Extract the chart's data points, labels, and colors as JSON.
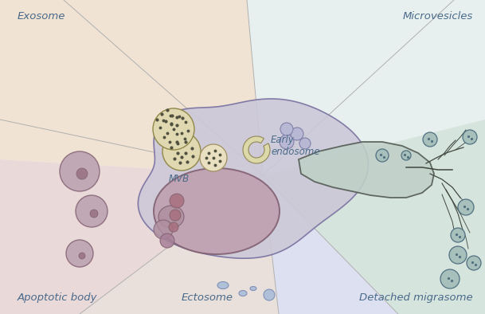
{
  "bg_color": "#ffffff",
  "text_color": "#4a6a8a",
  "label_exosome": "Exosome",
  "label_microvesicles": "Microvesicles",
  "label_apoptotic": "Apoptotic body",
  "label_ectosome": "Ectosome",
  "label_detached": "Detached migrasome",
  "label_mvb": "MVB",
  "label_early_endosome": "Early\nendosome",
  "zone_topleft_color": "#e8d5bc",
  "zone_topright_color": "#d5e5e0",
  "zone_botleft_color": "#dcc0c0",
  "zone_botcenter_color": "#ccd0e8",
  "zone_botright_color": "#c5d8d0",
  "cell_face_color": "#ccc8d8",
  "cell_edge_color": "#7870a0",
  "nucleus_face_color": "#c0a0b0",
  "nucleus_edge_color": "#806070",
  "mig_face_color": "#c0d0c8",
  "mig_edge_color": "#505850",
  "sphere_left_color": "#c0a8b5",
  "sphere_mig_face": "#a8c0bc",
  "sphere_mig_edge": "#507080",
  "mvb_large_color": "#e0d8b0",
  "mvb_small_color": "#e8e0c0",
  "line_color": "#b0b0b0",
  "bud_color": "#b8b8d5",
  "ecto_color": "#b0c0d8",
  "dot_color": "#505040",
  "inner_blob_color": "#b08090"
}
